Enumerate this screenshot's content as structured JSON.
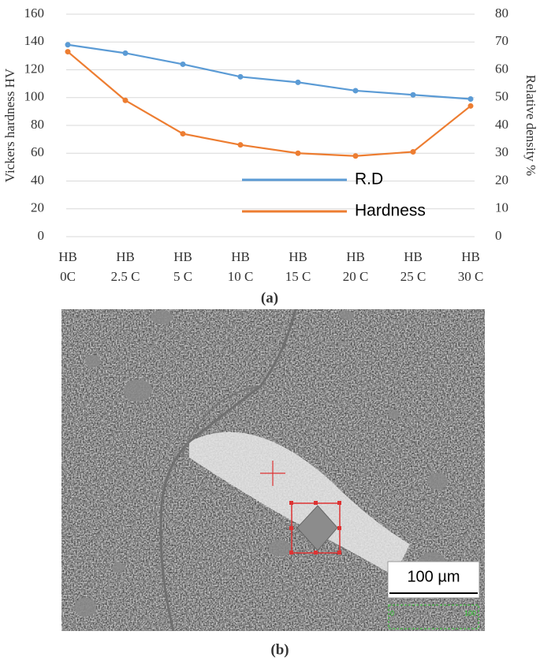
{
  "chart_data": {
    "type": "line",
    "categories": [
      [
        "HB",
        "0C"
      ],
      [
        "HB",
        "2.5 C"
      ],
      [
        "HB",
        "5 C"
      ],
      [
        "HB",
        "10 C"
      ],
      [
        "HB",
        "15 C"
      ],
      [
        "HB",
        "20 C"
      ],
      [
        "HB",
        "25 C"
      ],
      [
        "HB",
        "30 C"
      ]
    ],
    "ylabel": "Vickers hardness  HV",
    "y2label": "Relative density %",
    "ylim": [
      0,
      160
    ],
    "yticks": [
      0,
      20,
      40,
      60,
      80,
      100,
      120,
      140,
      160
    ],
    "y2lim": [
      0,
      80
    ],
    "y2ticks": [
      0,
      10,
      20,
      30,
      40,
      50,
      60,
      70,
      80
    ],
    "grid": true,
    "series": [
      {
        "name": "R.D",
        "color": "#5b9bd5",
        "axis": "y2",
        "values": [
          69,
          66,
          62,
          57.5,
          55.5,
          52.5,
          51,
          49.5
        ]
      },
      {
        "name": "Hardness",
        "color": "#ed7d31",
        "values": [
          133,
          98,
          74,
          66,
          60,
          58,
          61,
          94
        ]
      }
    ],
    "caption": "(a)"
  },
  "micrograph": {
    "scale_bar": "100 µm",
    "scale_ticks": [
      "0",
      "100"
    ],
    "caption": "(b)"
  }
}
